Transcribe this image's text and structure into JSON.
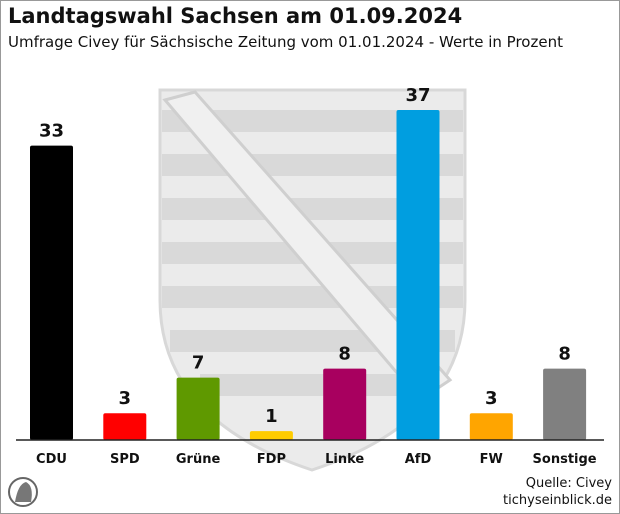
{
  "title": "Landtagswahl Sachsen am 01.09.2024",
  "subtitle": "Umfrage Civey für Sächsische Zeitung vom 01.01.2024 - Werte in Prozent",
  "source": "Quelle: Civey",
  "website": "tichyseinblick.de",
  "chart_data": {
    "type": "bar",
    "title": "Landtagswahl Sachsen am 01.09.2024",
    "categories": [
      "CDU",
      "SPD",
      "Grüne",
      "FDP",
      "Linke",
      "AfD",
      "FW",
      "Sonstige"
    ],
    "values": [
      33,
      3,
      7,
      1,
      8,
      37,
      3,
      8
    ],
    "colors": [
      "#000000",
      "#ff0000",
      "#5f9900",
      "#ffcc00",
      "#a8005f",
      "#009ee0",
      "#ffa500",
      "#808080"
    ],
    "xlabel": "",
    "ylabel": "",
    "ylim": [
      0,
      40
    ],
    "grid": false
  }
}
